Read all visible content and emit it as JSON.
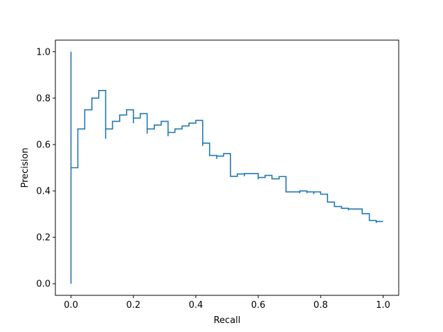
{
  "chart_data": {
    "type": "line",
    "drawstyle": "steps-post",
    "title": "",
    "xlabel": "Recall",
    "ylabel": "Precision",
    "xlim": [
      -0.05,
      1.05
    ],
    "ylim": [
      -0.05,
      1.05
    ],
    "xticks": [
      0.0,
      0.2,
      0.4,
      0.6,
      0.8,
      1.0
    ],
    "xtick_labels": [
      "0.0",
      "0.2",
      "0.4",
      "0.6",
      "0.8",
      "1.0"
    ],
    "yticks": [
      0.0,
      0.2,
      0.4,
      0.6,
      0.8,
      1.0
    ],
    "ytick_labels": [
      "0.0",
      "0.2",
      "0.4",
      "0.6",
      "0.8",
      "1.0"
    ],
    "grid": false,
    "legend": "none",
    "series": [
      {
        "color": "#1f77b4",
        "points": [
          [
            0.0,
            0.0
          ],
          [
            0.0,
            1.0
          ],
          [
            0.0,
            0.5
          ],
          [
            0.022,
            0.5
          ],
          [
            0.022,
            0.667
          ],
          [
            0.044,
            0.667
          ],
          [
            0.044,
            0.75
          ],
          [
            0.067,
            0.75
          ],
          [
            0.067,
            0.8
          ],
          [
            0.089,
            0.8
          ],
          [
            0.089,
            0.833
          ],
          [
            0.111,
            0.833
          ],
          [
            0.111,
            0.625
          ],
          [
            0.111,
            0.667
          ],
          [
            0.133,
            0.667
          ],
          [
            0.133,
            0.7
          ],
          [
            0.156,
            0.7
          ],
          [
            0.156,
            0.727
          ],
          [
            0.178,
            0.727
          ],
          [
            0.178,
            0.75
          ],
          [
            0.2,
            0.75
          ],
          [
            0.2,
            0.692
          ],
          [
            0.2,
            0.714
          ],
          [
            0.222,
            0.714
          ],
          [
            0.222,
            0.733
          ],
          [
            0.244,
            0.733
          ],
          [
            0.244,
            0.647
          ],
          [
            0.244,
            0.667
          ],
          [
            0.267,
            0.667
          ],
          [
            0.267,
            0.684
          ],
          [
            0.289,
            0.684
          ],
          [
            0.289,
            0.7
          ],
          [
            0.311,
            0.7
          ],
          [
            0.311,
            0.636
          ],
          [
            0.311,
            0.652
          ],
          [
            0.333,
            0.652
          ],
          [
            0.333,
            0.667
          ],
          [
            0.356,
            0.667
          ],
          [
            0.356,
            0.68
          ],
          [
            0.378,
            0.68
          ],
          [
            0.378,
            0.692
          ],
          [
            0.4,
            0.692
          ],
          [
            0.4,
            0.704
          ],
          [
            0.422,
            0.704
          ],
          [
            0.422,
            0.594
          ],
          [
            0.422,
            0.606
          ],
          [
            0.444,
            0.606
          ],
          [
            0.444,
            0.553
          ],
          [
            0.467,
            0.553
          ],
          [
            0.467,
            0.538
          ],
          [
            0.467,
            0.55
          ],
          [
            0.489,
            0.55
          ],
          [
            0.489,
            0.561
          ],
          [
            0.511,
            0.561
          ],
          [
            0.511,
            0.463
          ],
          [
            0.533,
            0.463
          ],
          [
            0.533,
            0.473
          ],
          [
            0.556,
            0.473
          ],
          [
            0.556,
            0.463
          ],
          [
            0.556,
            0.475
          ],
          [
            0.6,
            0.475
          ],
          [
            0.6,
            0.45
          ],
          [
            0.6,
            0.458
          ],
          [
            0.622,
            0.458
          ],
          [
            0.622,
            0.467
          ],
          [
            0.644,
            0.467
          ],
          [
            0.644,
            0.452
          ],
          [
            0.644,
            0.452
          ],
          [
            0.667,
            0.452
          ],
          [
            0.667,
            0.462
          ],
          [
            0.689,
            0.462
          ],
          [
            0.689,
            0.396
          ],
          [
            0.733,
            0.396
          ],
          [
            0.733,
            0.39
          ],
          [
            0.733,
            0.4
          ],
          [
            0.756,
            0.4
          ],
          [
            0.756,
            0.39
          ],
          [
            0.756,
            0.396
          ],
          [
            0.778,
            0.396
          ],
          [
            0.778,
            0.386
          ],
          [
            0.778,
            0.396
          ],
          [
            0.8,
            0.396
          ],
          [
            0.8,
            0.386
          ],
          [
            0.8,
            0.386
          ],
          [
            0.822,
            0.386
          ],
          [
            0.822,
            0.352
          ],
          [
            0.844,
            0.352
          ],
          [
            0.844,
            0.333
          ],
          [
            0.867,
            0.333
          ],
          [
            0.867,
            0.325
          ],
          [
            0.889,
            0.325
          ],
          [
            0.889,
            0.316
          ],
          [
            0.889,
            0.322
          ],
          [
            0.933,
            0.322
          ],
          [
            0.933,
            0.302
          ],
          [
            0.956,
            0.302
          ],
          [
            0.956,
            0.273
          ],
          [
            0.978,
            0.273
          ],
          [
            0.978,
            0.262
          ],
          [
            0.978,
            0.268
          ],
          [
            1.0,
            0.268
          ]
        ]
      }
    ]
  }
}
